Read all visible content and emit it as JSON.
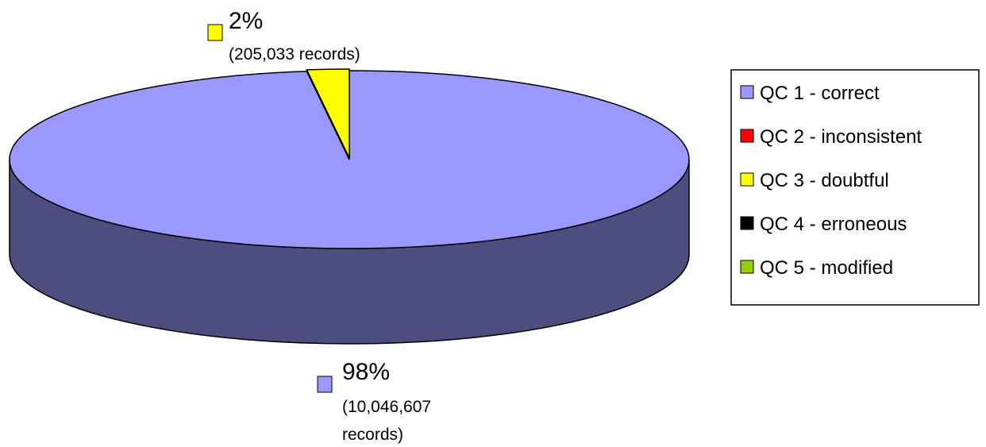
{
  "chart_data": {
    "type": "pie",
    "title": "",
    "style": "3d",
    "slices": [
      {
        "name": "QC 1 - correct",
        "percent": 98,
        "records": 10046607,
        "percent_label": "98%",
        "records_label_lines": [
          "(10,046,607",
          "records)"
        ],
        "color": "#9999FF",
        "side_color": "#4D4D80"
      },
      {
        "name": "QC 2 - inconsistent",
        "percent": 0,
        "records": 0,
        "color": "#FF0000"
      },
      {
        "name": "QC 3 - doubtful",
        "percent": 2,
        "records": 205033,
        "percent_label": "2%",
        "records_label_lines": [
          "(205,033 records)"
        ],
        "color": "#FFFF00",
        "side_color": "#808000"
      },
      {
        "name": "QC 4 - erroneous",
        "percent": 0,
        "records": 0,
        "color": "#000000"
      },
      {
        "name": "QC 5 - modified",
        "percent": 0,
        "records": 0,
        "color": "#99CC00"
      }
    ],
    "legend": {
      "position": "right",
      "entries": [
        "QC 1 - correct",
        "QC 2 - inconsistent",
        "QC 3 - doubtful",
        "QC 4 - erroneous",
        "QC 5 - modified"
      ]
    }
  }
}
